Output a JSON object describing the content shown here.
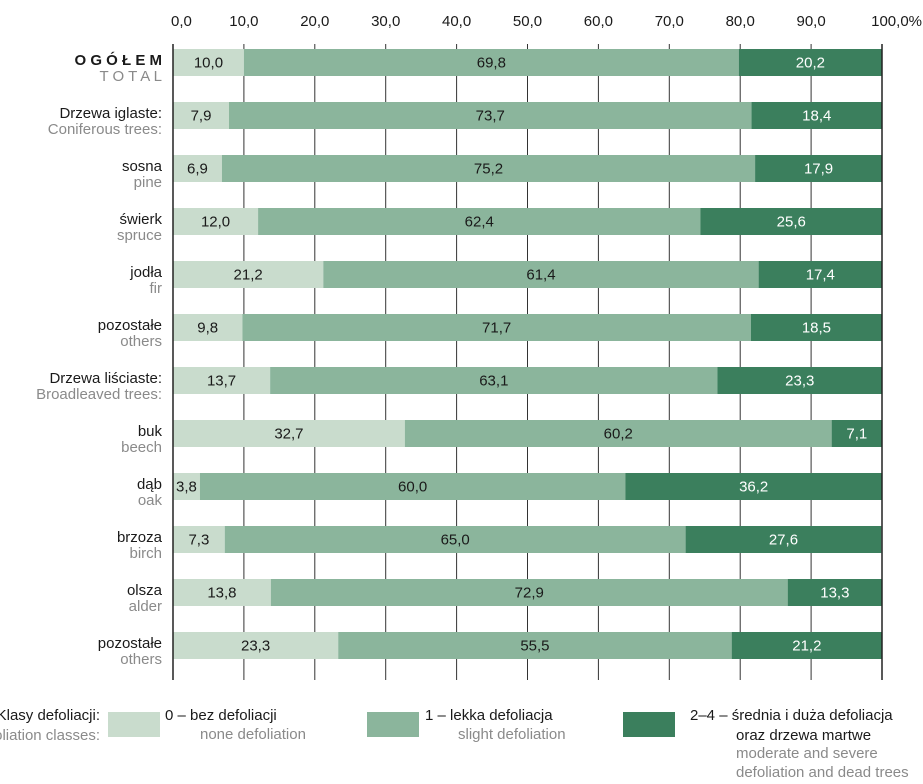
{
  "chart_data": {
    "type": "bar",
    "orientation": "horizontal",
    "stacked": true,
    "xlim": [
      0,
      100
    ],
    "x_ticks": [
      "0,0",
      "10,0",
      "20,0",
      "30,0",
      "40,0",
      "50,0",
      "60,0",
      "70,0",
      "80,0",
      "90,0",
      "100,0%"
    ],
    "grid": "vertical",
    "legend_placement": "bottom",
    "categories": [
      {
        "pl": "O G Ó Ł E M",
        "en": "T O T A L",
        "bold": true
      },
      {
        "pl": "Drzewa iglaste:",
        "en": "Coniferous trees:"
      },
      {
        "pl": "sosna",
        "en": "pine"
      },
      {
        "pl": "świerk",
        "en": "spruce"
      },
      {
        "pl": "jodła",
        "en": "fir"
      },
      {
        "pl": "pozostałe",
        "en": "others"
      },
      {
        "pl": "Drzewa liściaste:",
        "en": "Broadleaved trees:"
      },
      {
        "pl": "buk",
        "en": "beech"
      },
      {
        "pl": "dąb",
        "en": "oak"
      },
      {
        "pl": "brzoza",
        "en": "birch"
      },
      {
        "pl": "olsza",
        "en": "alder"
      },
      {
        "pl": "pozostałe",
        "en": "others"
      }
    ],
    "series": [
      {
        "values": [
          10.0,
          7.9,
          6.9,
          12.0,
          21.2,
          9.8,
          13.7,
          32.7,
          3.8,
          7.3,
          13.8,
          23.3
        ],
        "labels": [
          "10,0",
          "7,9",
          "6,9",
          "12,0",
          "21,2",
          "9,8",
          "13,7",
          "32,7",
          "3,8",
          "7,3",
          "13,8",
          "23,3"
        ]
      },
      {
        "values": [
          69.8,
          73.7,
          75.2,
          62.4,
          61.4,
          71.7,
          63.1,
          60.2,
          60.0,
          65.0,
          72.9,
          55.5
        ],
        "labels": [
          "69,8",
          "73,7",
          "75,2",
          "62,4",
          "61,4",
          "71,7",
          "63,1",
          "60,2",
          "60,0",
          "65,0",
          "72,9",
          "55,5"
        ]
      },
      {
        "values": [
          20.2,
          18.4,
          17.9,
          25.6,
          17.4,
          18.5,
          23.3,
          7.1,
          36.2,
          27.6,
          13.3,
          21.2
        ],
        "labels": [
          "20,2",
          "18,4",
          "17,9",
          "25,6",
          "17,4",
          "18,5",
          "23,3",
          "7,1",
          "36,2",
          "27,6",
          "13,3",
          "21,2"
        ]
      }
    ],
    "legend": {
      "title_pl": "Klasy defoliacji:",
      "title_en": "Defoliation classes:",
      "items": [
        {
          "pl": "0 – bez defoliacji",
          "en": [
            "none defoliation"
          ]
        },
        {
          "pl": "1 – lekka defoliacja",
          "en": [
            "slight defoliation"
          ]
        },
        {
          "pl": "2–4 – średnia i duża defoliacja",
          "pl2": "oraz drzewa martwe",
          "en": [
            "moderate and severe",
            "defoliation and dead trees"
          ]
        }
      ]
    }
  },
  "colors": {
    "none": "#c9dccd",
    "slight": "#8bb59c",
    "severe": "#3b7f5d",
    "border": "#222222",
    "grid": "#333333",
    "text": "#1a1a1a",
    "text_secondary": "#8a8a8a",
    "text_on_dark": "#ffffff"
  }
}
